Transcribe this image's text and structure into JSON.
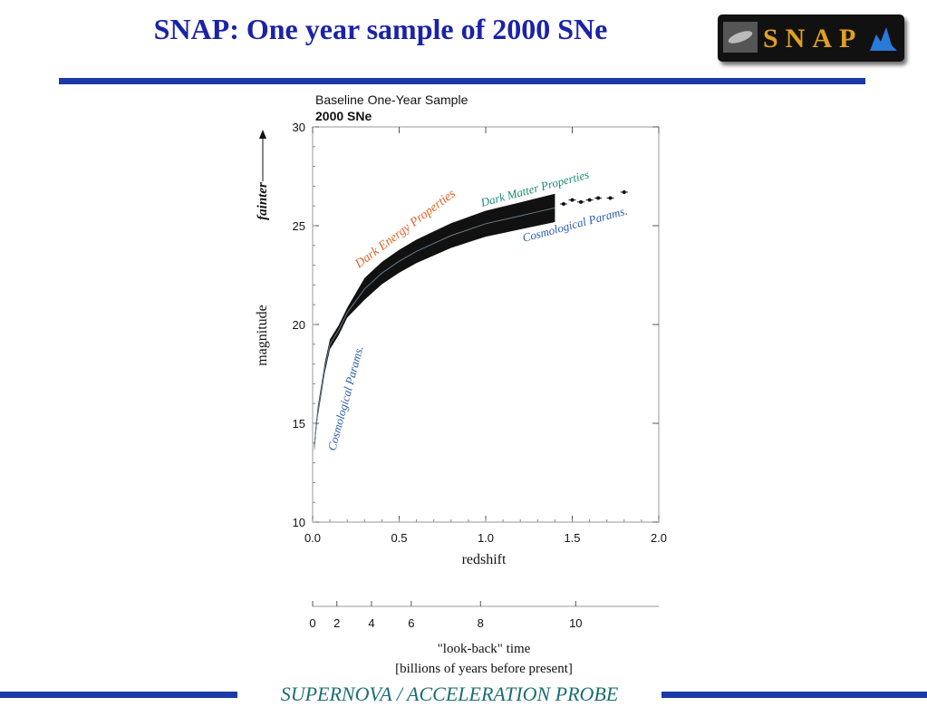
{
  "slide": {
    "title": "SNAP: One year sample of 2000 SNe",
    "logo_text": "SNAP",
    "footer": "SUPERNOVA / ACCELERATION PROBE",
    "colors": {
      "title": "#1a23a8",
      "rule": "#1a3aa8",
      "footer": "#1a6e72"
    }
  },
  "chart_data": {
    "type": "scatter",
    "title": "Baseline One-Year Sample",
    "subtitle": "2000 SNe",
    "xlabel": "redshift",
    "ylabel": "magnitude",
    "y_direction_label": "fainter",
    "xlim": [
      0.0,
      2.0
    ],
    "ylim": [
      10,
      30
    ],
    "x_ticks": [
      "0.0",
      "0.5",
      "1.0",
      "1.5",
      "2.0"
    ],
    "y_ticks": [
      "10",
      "15",
      "20",
      "25",
      "30"
    ],
    "grid": false,
    "series": [
      {
        "curve": [
          {
            "z": 0.01,
            "m": 13.8
          },
          {
            "z": 0.02,
            "m": 14.8
          },
          {
            "z": 0.03,
            "m": 15.6
          },
          {
            "z": 0.05,
            "m": 16.7
          },
          {
            "z": 0.07,
            "m": 17.8
          },
          {
            "z": 0.1,
            "m": 19.0
          },
          {
            "z": 0.15,
            "m": 19.7
          },
          {
            "z": 0.2,
            "m": 20.6
          },
          {
            "z": 0.3,
            "m": 21.8
          },
          {
            "z": 0.4,
            "m": 22.6
          },
          {
            "z": 0.5,
            "m": 23.2
          },
          {
            "z": 0.6,
            "m": 23.7
          },
          {
            "z": 0.7,
            "m": 24.1
          },
          {
            "z": 0.8,
            "m": 24.5
          },
          {
            "z": 0.9,
            "m": 24.8
          },
          {
            "z": 1.0,
            "m": 25.1
          },
          {
            "z": 1.1,
            "m": 25.3
          },
          {
            "z": 1.2,
            "m": 25.5
          },
          {
            "z": 1.3,
            "m": 25.7
          },
          {
            "z": 1.4,
            "m": 25.9
          },
          {
            "z": 1.5,
            "m": 26.1
          },
          {
            "z": 1.6,
            "m": 26.3
          },
          {
            "z": 1.7,
            "m": 26.5
          },
          {
            "z": 1.8,
            "m": 26.7
          }
        ],
        "sparse_points": [
          {
            "z": 1.45,
            "m": 26.1
          },
          {
            "z": 1.5,
            "m": 26.3
          },
          {
            "z": 1.55,
            "m": 26.2
          },
          {
            "z": 1.6,
            "m": 26.3
          },
          {
            "z": 1.65,
            "m": 26.4
          },
          {
            "z": 1.72,
            "m": 26.4
          },
          {
            "z": 1.8,
            "m": 26.7
          }
        ]
      }
    ],
    "annotations": [
      {
        "text": "Dark Energy Properties",
        "color": "#e2622a"
      },
      {
        "text": "Dark Matter Properties",
        "color": "#1a8a7a"
      },
      {
        "text": "Cosmological Params.",
        "color": "#2a5aa8"
      },
      {
        "text": "Cosmological Params.",
        "color": "#2a5aa8"
      }
    ],
    "secondary_axis": {
      "label": "\"look-back\" time",
      "sublabel": "[billions of years before present]",
      "ticks": [
        "0",
        "2",
        "4",
        "6",
        "8",
        "10"
      ]
    }
  }
}
